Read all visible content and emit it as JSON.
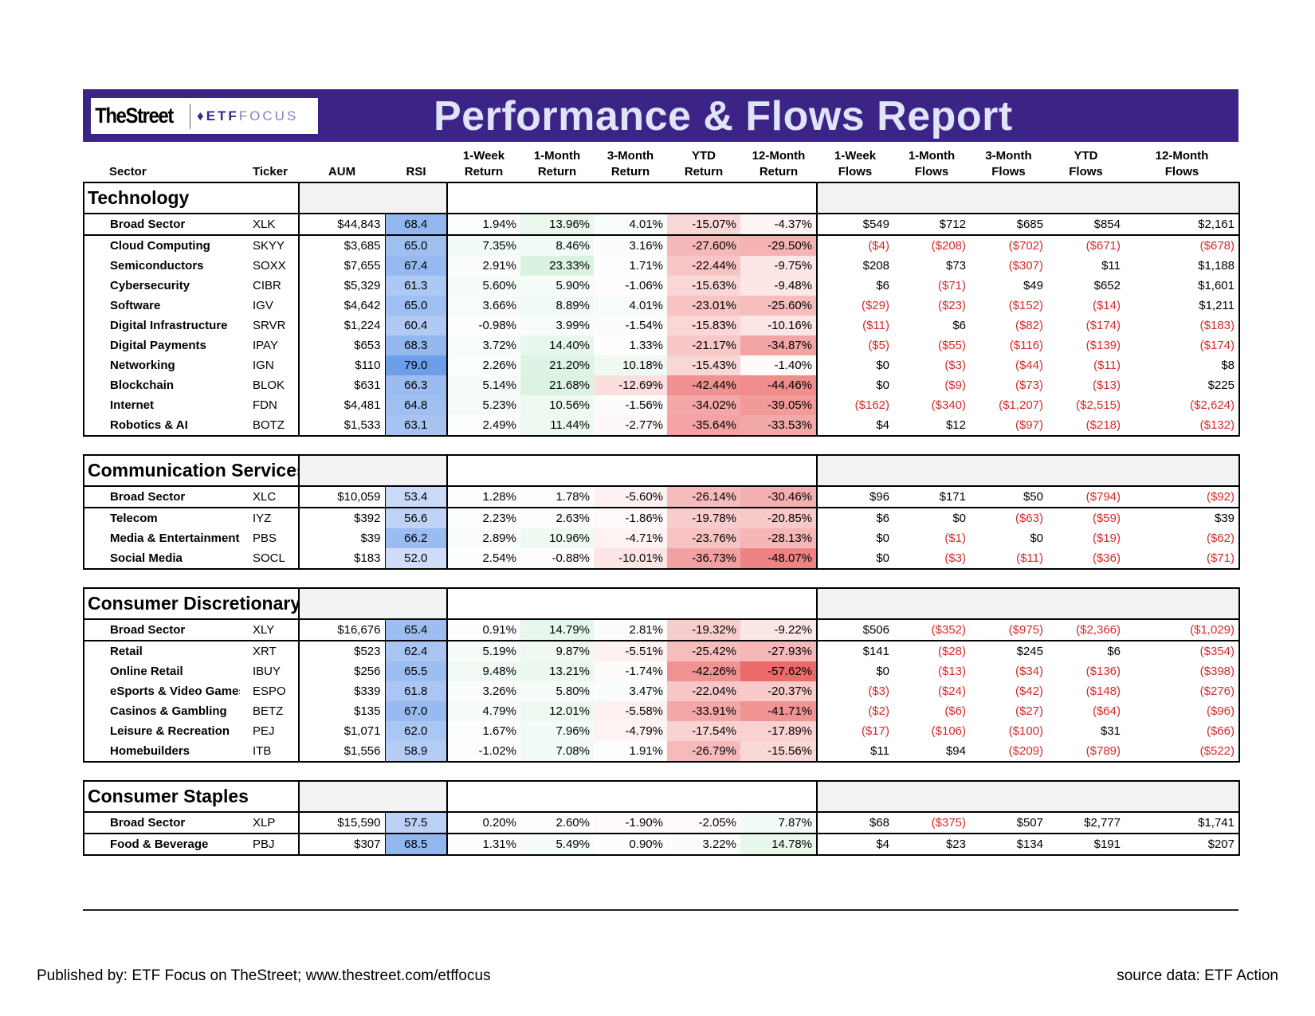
{
  "header": {
    "logo_thestreet": "TheStreet",
    "logo_etf": "ETF",
    "logo_focus": "FOCUS",
    "title": "Performance & Flows Report"
  },
  "columns": [
    [
      "Sector"
    ],
    [
      "Ticker"
    ],
    [
      "AUM"
    ],
    [
      "RSI"
    ],
    [
      "1-Week",
      "Return"
    ],
    [
      "1-Month",
      "Return"
    ],
    [
      "3-Month",
      "Return"
    ],
    [
      "YTD",
      "Return"
    ],
    [
      "12-Month",
      "Return"
    ],
    [
      "1-Week",
      "Flows"
    ],
    [
      "1-Month",
      "Flows"
    ],
    [
      "3-Month",
      "Flows"
    ],
    [
      "YTD",
      "Flows"
    ],
    [
      "12-Month",
      "Flows"
    ]
  ],
  "sections": [
    {
      "name": "Technology",
      "rows": [
        {
          "sector": "Broad Sector",
          "ticker": "XLK",
          "aum": "$44,843",
          "rsi": "68.4",
          "returns": [
            "1.94%",
            "13.96%",
            "4.01%",
            "-15.07%",
            "-4.37%"
          ],
          "flows": [
            "$549",
            "$712",
            "$685",
            "$854",
            "$2,161"
          ]
        },
        {
          "sector": "Cloud Computing",
          "ticker": "SKYY",
          "aum": "$3,685",
          "rsi": "65.0",
          "returns": [
            "7.35%",
            "8.46%",
            "3.16%",
            "-27.60%",
            "-29.50%"
          ],
          "flows": [
            "($4)",
            "($208)",
            "($702)",
            "($671)",
            "($678)"
          ]
        },
        {
          "sector": "Semiconductors",
          "ticker": "SOXX",
          "aum": "$7,655",
          "rsi": "67.4",
          "returns": [
            "2.91%",
            "23.33%",
            "1.71%",
            "-22.44%",
            "-9.75%"
          ],
          "flows": [
            "$208",
            "$73",
            "($307)",
            "$11",
            "$1,188"
          ]
        },
        {
          "sector": "Cybersecurity",
          "ticker": "CIBR",
          "aum": "$5,329",
          "rsi": "61.3",
          "returns": [
            "5.60%",
            "5.90%",
            "-1.06%",
            "-15.63%",
            "-9.48%"
          ],
          "flows": [
            "$6",
            "($71)",
            "$49",
            "$652",
            "$1,601"
          ]
        },
        {
          "sector": "Software",
          "ticker": "IGV",
          "aum": "$4,642",
          "rsi": "65.0",
          "returns": [
            "3.66%",
            "8.89%",
            "4.01%",
            "-23.01%",
            "-25.60%"
          ],
          "flows": [
            "($29)",
            "($23)",
            "($152)",
            "($14)",
            "$1,211"
          ]
        },
        {
          "sector": "Digital Infrastructure",
          "ticker": "SRVR",
          "aum": "$1,224",
          "rsi": "60.4",
          "returns": [
            "-0.98%",
            "3.99%",
            "-1.54%",
            "-15.83%",
            "-10.16%"
          ],
          "flows": [
            "($11)",
            "$6",
            "($82)",
            "($174)",
            "($183)"
          ]
        },
        {
          "sector": "Digital Payments",
          "ticker": "IPAY",
          "aum": "$653",
          "rsi": "68.3",
          "returns": [
            "3.72%",
            "14.40%",
            "1.33%",
            "-21.17%",
            "-34.87%"
          ],
          "flows": [
            "($5)",
            "($55)",
            "($116)",
            "($139)",
            "($174)"
          ]
        },
        {
          "sector": "Networking",
          "ticker": "IGN",
          "aum": "$110",
          "rsi": "79.0",
          "returns": [
            "2.26%",
            "21.20%",
            "10.18%",
            "-15.43%",
            "-1.40%"
          ],
          "flows": [
            "$0",
            "($3)",
            "($44)",
            "($11)",
            "$8"
          ]
        },
        {
          "sector": "Blockchain",
          "ticker": "BLOK",
          "aum": "$631",
          "rsi": "66.3",
          "returns": [
            "5.14%",
            "21.68%",
            "-12.69%",
            "-42.44%",
            "-44.46%"
          ],
          "flows": [
            "$0",
            "($9)",
            "($73)",
            "($13)",
            "$225"
          ]
        },
        {
          "sector": "Internet",
          "ticker": "FDN",
          "aum": "$4,481",
          "rsi": "64.8",
          "returns": [
            "5.23%",
            "10.56%",
            "-1.56%",
            "-34.02%",
            "-39.05%"
          ],
          "flows": [
            "($162)",
            "($340)",
            "($1,207)",
            "($2,515)",
            "($2,624)"
          ]
        },
        {
          "sector": "Robotics & AI",
          "ticker": "BOTZ",
          "aum": "$1,533",
          "rsi": "63.1",
          "returns": [
            "2.49%",
            "11.44%",
            "-2.77%",
            "-35.64%",
            "-33.53%"
          ],
          "flows": [
            "$4",
            "$12",
            "($97)",
            "($218)",
            "($132)"
          ]
        }
      ]
    },
    {
      "name": "Communication Services",
      "rows": [
        {
          "sector": "Broad Sector",
          "ticker": "XLC",
          "aum": "$10,059",
          "rsi": "53.4",
          "returns": [
            "1.28%",
            "1.78%",
            "-5.60%",
            "-26.14%",
            "-30.46%"
          ],
          "flows": [
            "$96",
            "$171",
            "$50",
            "($794)",
            "($92)"
          ]
        },
        {
          "sector": "Telecom",
          "ticker": "IYZ",
          "aum": "$392",
          "rsi": "56.6",
          "returns": [
            "2.23%",
            "2.63%",
            "-1.86%",
            "-19.78%",
            "-20.85%"
          ],
          "flows": [
            "$6",
            "$0",
            "($63)",
            "($59)",
            "$39"
          ]
        },
        {
          "sector": "Media & Entertainment",
          "ticker": "PBS",
          "aum": "$39",
          "rsi": "66.2",
          "returns": [
            "2.89%",
            "10.96%",
            "-4.71%",
            "-23.76%",
            "-28.13%"
          ],
          "flows": [
            "$0",
            "($1)",
            "$0",
            "($19)",
            "($62)"
          ]
        },
        {
          "sector": "Social Media",
          "ticker": "SOCL",
          "aum": "$183",
          "rsi": "52.0",
          "returns": [
            "2.54%",
            "-0.88%",
            "-10.01%",
            "-36.73%",
            "-48.07%"
          ],
          "flows": [
            "$0",
            "($3)",
            "($11)",
            "($36)",
            "($71)"
          ]
        }
      ]
    },
    {
      "name": "Consumer Discretionary",
      "rows": [
        {
          "sector": "Broad Sector",
          "ticker": "XLY",
          "aum": "$16,676",
          "rsi": "65.4",
          "returns": [
            "0.91%",
            "14.79%",
            "2.81%",
            "-19.32%",
            "-9.22%"
          ],
          "flows": [
            "$506",
            "($352)",
            "($975)",
            "($2,366)",
            "($1,029)"
          ]
        },
        {
          "sector": "Retail",
          "ticker": "XRT",
          "aum": "$523",
          "rsi": "62.4",
          "returns": [
            "5.19%",
            "9.87%",
            "-5.51%",
            "-25.42%",
            "-27.93%"
          ],
          "flows": [
            "$141",
            "($28)",
            "$245",
            "$6",
            "($354)"
          ]
        },
        {
          "sector": "Online Retail",
          "ticker": "IBUY",
          "aum": "$256",
          "rsi": "65.5",
          "returns": [
            "9.48%",
            "13.21%",
            "-1.74%",
            "-42.26%",
            "-57.62%"
          ],
          "flows": [
            "$0",
            "($13)",
            "($34)",
            "($136)",
            "($398)"
          ]
        },
        {
          "sector": "eSports & Video Games",
          "ticker": "ESPO",
          "aum": "$339",
          "rsi": "61.8",
          "returns": [
            "3.26%",
            "5.80%",
            "3.47%",
            "-22.04%",
            "-20.37%"
          ],
          "flows": [
            "($3)",
            "($24)",
            "($42)",
            "($148)",
            "($276)"
          ]
        },
        {
          "sector": "Casinos & Gambling",
          "ticker": "BETZ",
          "aum": "$135",
          "rsi": "67.0",
          "returns": [
            "4.79%",
            "12.01%",
            "-5.58%",
            "-33.91%",
            "-41.71%"
          ],
          "flows": [
            "($2)",
            "($6)",
            "($27)",
            "($64)",
            "($96)"
          ]
        },
        {
          "sector": "Leisure & Recreation",
          "ticker": "PEJ",
          "aum": "$1,071",
          "rsi": "62.0",
          "returns": [
            "1.67%",
            "7.96%",
            "-4.79%",
            "-17.54%",
            "-17.89%"
          ],
          "flows": [
            "($17)",
            "($106)",
            "($100)",
            "$31",
            "($66)"
          ]
        },
        {
          "sector": "Homebuilders",
          "ticker": "ITB",
          "aum": "$1,556",
          "rsi": "58.9",
          "returns": [
            "-1.02%",
            "7.08%",
            "1.91%",
            "-26.79%",
            "-15.56%"
          ],
          "flows": [
            "$11",
            "$94",
            "($209)",
            "($789)",
            "($522)"
          ]
        }
      ]
    },
    {
      "name": "Consumer Staples",
      "rows": [
        {
          "sector": "Broad Sector",
          "ticker": "XLP",
          "aum": "$15,590",
          "rsi": "57.5",
          "returns": [
            "0.20%",
            "2.60%",
            "-1.90%",
            "-2.05%",
            "7.87%"
          ],
          "flows": [
            "$68",
            "($375)",
            "$507",
            "$2,777",
            "$1,741"
          ]
        },
        {
          "sector": "Food & Beverage",
          "ticker": "PBJ",
          "aum": "$307",
          "rsi": "68.5",
          "returns": [
            "1.31%",
            "5.49%",
            "0.90%",
            "3.22%",
            "14.78%"
          ],
          "flows": [
            "$4",
            "$23",
            "$134",
            "$191",
            "$207"
          ]
        }
      ]
    }
  ],
  "footer": {
    "published": "Published by: ETF Focus on TheStreet; www.thestreet.com/etffocus",
    "source": "source data: ETF Action"
  }
}
